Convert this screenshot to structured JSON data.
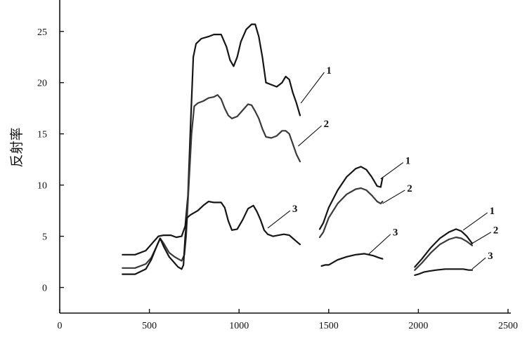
{
  "chart_data": {
    "type": "line",
    "title": "",
    "xlabel": "",
    "ylabel": "反射率",
    "xlim": [
      0,
      2500
    ],
    "ylim": [
      -2.5,
      28
    ],
    "xticks": [
      0,
      500,
      1000,
      1500,
      2000,
      2500
    ],
    "yticks": [
      0,
      5,
      10,
      15,
      20,
      25
    ],
    "grid": false,
    "legend": "none",
    "series": [
      {
        "label": "1",
        "segments": [
          [
            [
              350,
              3.2
            ],
            [
              420,
              3.2
            ],
            [
              480,
              3.6
            ],
            [
              520,
              4.4
            ],
            [
              550,
              5.0
            ],
            [
              580,
              5.1
            ],
            [
              620,
              5.1
            ],
            [
              650,
              4.9
            ],
            [
              680,
              5.0
            ],
            [
              700,
              6.0
            ],
            [
              715,
              9.0
            ],
            [
              730,
              16.0
            ],
            [
              745,
              22.5
            ],
            [
              760,
              23.8
            ],
            [
              790,
              24.3
            ],
            [
              830,
              24.5
            ],
            [
              860,
              24.7
            ],
            [
              900,
              24.7
            ],
            [
              930,
              23.5
            ],
            [
              950,
              22.2
            ],
            [
              970,
              21.6
            ],
            [
              990,
              22.5
            ],
            [
              1010,
              24.0
            ],
            [
              1040,
              25.2
            ],
            [
              1070,
              25.7
            ],
            [
              1090,
              25.7
            ],
            [
              1110,
              24.5
            ],
            [
              1130,
              22.5
            ],
            [
              1150,
              20.0
            ],
            [
              1180,
              19.8
            ],
            [
              1210,
              19.6
            ],
            [
              1240,
              20.0
            ],
            [
              1260,
              20.6
            ],
            [
              1280,
              20.3
            ],
            [
              1300,
              19.0
            ],
            [
              1320,
              18.0
            ],
            [
              1340,
              16.8
            ]
          ],
          [
            [
              1450,
              5.7
            ],
            [
              1470,
              6.3
            ],
            [
              1500,
              7.8
            ],
            [
              1550,
              9.5
            ],
            [
              1600,
              10.8
            ],
            [
              1650,
              11.6
            ],
            [
              1680,
              11.8
            ],
            [
              1710,
              11.5
            ],
            [
              1740,
              10.8
            ],
            [
              1770,
              9.9
            ],
            [
              1790,
              9.8
            ],
            [
              1800,
              10.7
            ]
          ],
          [
            [
              1980,
              2.0
            ],
            [
              2020,
              2.8
            ],
            [
              2070,
              3.9
            ],
            [
              2120,
              4.8
            ],
            [
              2170,
              5.4
            ],
            [
              2210,
              5.7
            ],
            [
              2240,
              5.5
            ],
            [
              2270,
              5.0
            ],
            [
              2300,
              4.3
            ]
          ]
        ]
      },
      {
        "label": "2",
        "segments": [
          [
            [
              350,
              1.9
            ],
            [
              420,
              1.9
            ],
            [
              480,
              2.3
            ],
            [
              510,
              2.9
            ],
            [
              540,
              4.0
            ],
            [
              560,
              4.8
            ],
            [
              580,
              4.3
            ],
            [
              610,
              3.4
            ],
            [
              640,
              3.0
            ],
            [
              660,
              2.8
            ],
            [
              680,
              2.6
            ],
            [
              695,
              3.2
            ],
            [
              705,
              5.0
            ],
            [
              720,
              10.0
            ],
            [
              735,
              15.0
            ],
            [
              750,
              17.7
            ],
            [
              770,
              18.0
            ],
            [
              800,
              18.2
            ],
            [
              830,
              18.5
            ],
            [
              860,
              18.6
            ],
            [
              880,
              18.8
            ],
            [
              900,
              18.4
            ],
            [
              920,
              17.5
            ],
            [
              940,
              16.8
            ],
            [
              960,
              16.5
            ],
            [
              990,
              16.7
            ],
            [
              1020,
              17.3
            ],
            [
              1050,
              17.9
            ],
            [
              1070,
              17.8
            ],
            [
              1090,
              17.2
            ],
            [
              1110,
              16.5
            ],
            [
              1130,
              15.5
            ],
            [
              1150,
              14.7
            ],
            [
              1180,
              14.6
            ],
            [
              1210,
              14.8
            ],
            [
              1240,
              15.3
            ],
            [
              1260,
              15.3
            ],
            [
              1280,
              15.0
            ],
            [
              1300,
              14.0
            ],
            [
              1320,
              13.0
            ],
            [
              1340,
              12.3
            ]
          ],
          [
            [
              1450,
              4.9
            ],
            [
              1470,
              5.4
            ],
            [
              1500,
              6.8
            ],
            [
              1550,
              8.2
            ],
            [
              1600,
              9.1
            ],
            [
              1650,
              9.6
            ],
            [
              1680,
              9.7
            ],
            [
              1710,
              9.5
            ],
            [
              1740,
              9.0
            ],
            [
              1770,
              8.4
            ],
            [
              1790,
              8.2
            ],
            [
              1800,
              8.4
            ]
          ],
          [
            [
              1980,
              1.7
            ],
            [
              2020,
              2.4
            ],
            [
              2070,
              3.4
            ],
            [
              2120,
              4.2
            ],
            [
              2170,
              4.7
            ],
            [
              2210,
              4.9
            ],
            [
              2240,
              4.8
            ],
            [
              2270,
              4.5
            ],
            [
              2300,
              4.1
            ]
          ]
        ]
      },
      {
        "label": "3",
        "segments": [
          [
            [
              350,
              1.3
            ],
            [
              420,
              1.3
            ],
            [
              480,
              1.8
            ],
            [
              510,
              2.7
            ],
            [
              540,
              4.0
            ],
            [
              560,
              4.8
            ],
            [
              580,
              4.0
            ],
            [
              610,
              3.0
            ],
            [
              640,
              2.4
            ],
            [
              660,
              2.0
            ],
            [
              680,
              1.8
            ],
            [
              690,
              2.2
            ],
            [
              700,
              5.0
            ],
            [
              710,
              6.8
            ],
            [
              730,
              7.1
            ],
            [
              770,
              7.5
            ],
            [
              800,
              8.0
            ],
            [
              830,
              8.4
            ],
            [
              860,
              8.3
            ],
            [
              900,
              8.3
            ],
            [
              920,
              7.8
            ],
            [
              940,
              6.5
            ],
            [
              960,
              5.6
            ],
            [
              990,
              5.7
            ],
            [
              1020,
              6.6
            ],
            [
              1050,
              7.7
            ],
            [
              1080,
              8.0
            ],
            [
              1100,
              7.4
            ],
            [
              1120,
              6.6
            ],
            [
              1140,
              5.6
            ],
            [
              1160,
              5.2
            ],
            [
              1190,
              5.0
            ],
            [
              1220,
              5.1
            ],
            [
              1250,
              5.2
            ],
            [
              1280,
              5.1
            ],
            [
              1300,
              4.8
            ],
            [
              1320,
              4.5
            ],
            [
              1340,
              4.2
            ]
          ],
          [
            [
              1460,
              2.1
            ],
            [
              1480,
              2.2
            ],
            [
              1500,
              2.2
            ],
            [
              1550,
              2.7
            ],
            [
              1600,
              3.0
            ],
            [
              1650,
              3.2
            ],
            [
              1700,
              3.3
            ],
            [
              1750,
              3.1
            ],
            [
              1780,
              2.9
            ],
            [
              1800,
              2.8
            ]
          ],
          [
            [
              1980,
              1.2
            ],
            [
              2000,
              1.3
            ],
            [
              2030,
              1.5
            ],
            [
              2060,
              1.6
            ],
            [
              2100,
              1.7
            ],
            [
              2150,
              1.8
            ],
            [
              2200,
              1.8
            ],
            [
              2250,
              1.8
            ],
            [
              2280,
              1.7
            ],
            [
              2300,
              1.7
            ]
          ]
        ]
      }
    ]
  },
  "leaders": [
    {
      "series": 0,
      "label": "1",
      "from": [
        1345,
        18.0
      ],
      "to": [
        1475,
        21.0
      ]
    },
    {
      "series": 1,
      "label": "2",
      "from": [
        1330,
        13.8
      ],
      "to": [
        1460,
        15.8
      ]
    },
    {
      "series": 2,
      "label": "3",
      "from": [
        1160,
        5.8
      ],
      "to": [
        1285,
        7.5
      ]
    },
    {
      "series": 0,
      "label": "1",
      "from": [
        1790,
        10.6
      ],
      "to": [
        1915,
        12.2
      ]
    },
    {
      "series": 1,
      "label": "2",
      "from": [
        1800,
        8.2
      ],
      "to": [
        1925,
        9.5
      ]
    },
    {
      "series": 2,
      "label": "3",
      "from": [
        1720,
        3.2
      ],
      "to": [
        1845,
        5.2
      ]
    },
    {
      "series": 0,
      "label": "1",
      "from": [
        2250,
        5.6
      ],
      "to": [
        2385,
        7.3
      ]
    },
    {
      "series": 1,
      "label": "2",
      "from": [
        2290,
        4.2
      ],
      "to": [
        2405,
        5.4
      ]
    },
    {
      "series": 2,
      "label": "3",
      "from": [
        2300,
        1.8
      ],
      "to": [
        2375,
        2.9
      ]
    }
  ]
}
